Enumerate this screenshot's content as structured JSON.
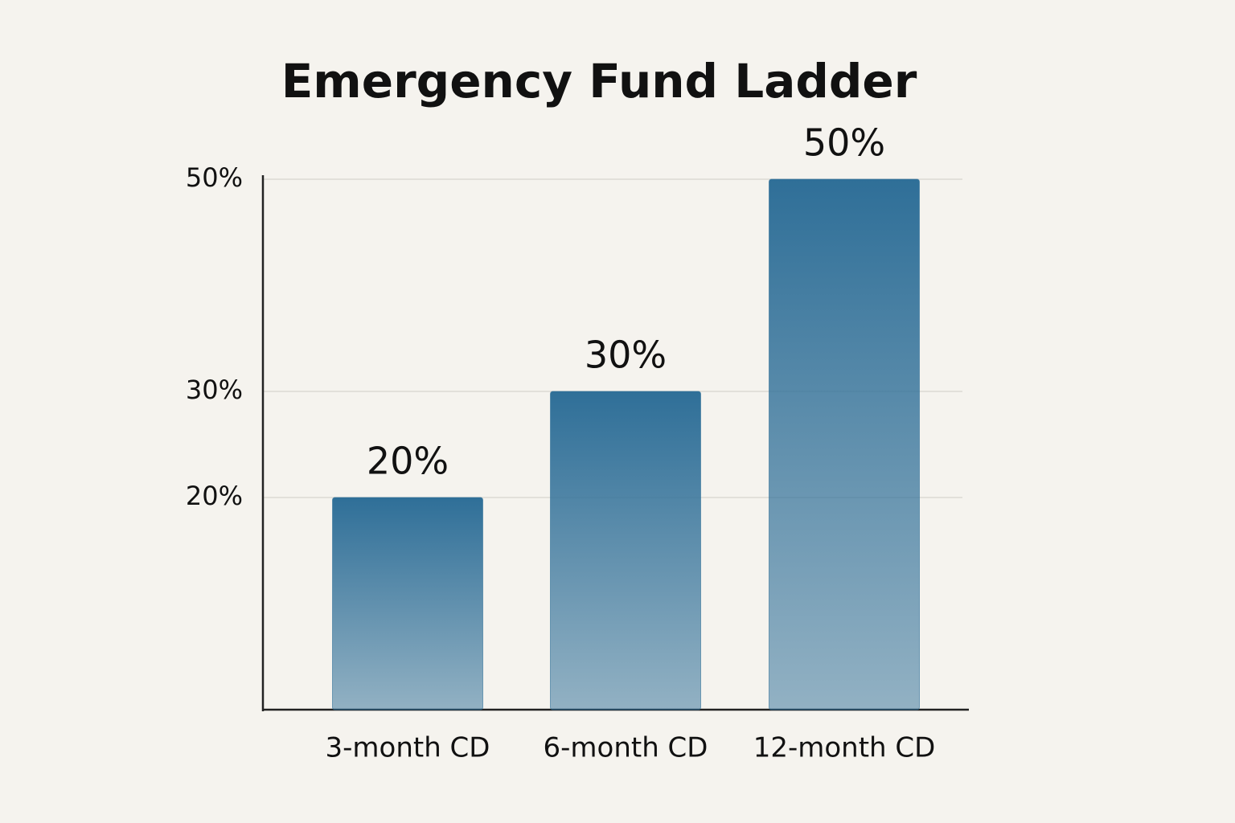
{
  "chart_data": {
    "type": "bar",
    "title": "Emergency Fund Ladder",
    "categories": [
      "3-month CD",
      "6-month CD",
      "12-month CD"
    ],
    "values": [
      20,
      30,
      50
    ],
    "value_labels": [
      "20%",
      "30%",
      "50%"
    ],
    "color": "#2f6f98",
    "ylim": [
      0,
      50
    ],
    "yticks": [
      {
        "value": 20,
        "label": "20%"
      },
      {
        "value": 30,
        "label": "30%"
      },
      {
        "value": 50,
        "label": "50%"
      }
    ],
    "grid": true
  }
}
